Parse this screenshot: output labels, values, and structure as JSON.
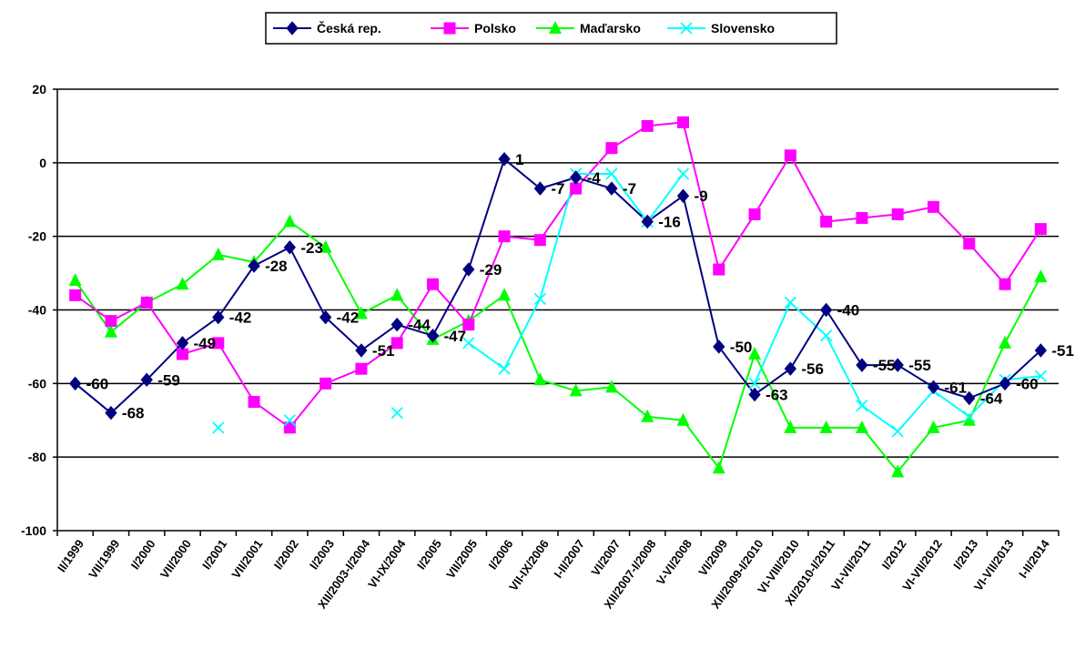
{
  "chart_data": {
    "type": "line",
    "ylim": [
      -100,
      20
    ],
    "yticks": [
      20,
      0,
      -20,
      -40,
      -60,
      -80,
      -100
    ],
    "grid": true,
    "legend_position": "top-center",
    "categories": [
      "II/1999",
      "VII/1999",
      "I/2000",
      "VII/2000",
      "I/2001",
      "VII/2001",
      "I/2002",
      "I/2003",
      "XII/2003-I/2004",
      "VI-IX/2004",
      "I/2005",
      "VII/2005",
      "I/2006",
      "VII-IX/2006",
      "I-II/2007",
      "VI/2007",
      "XII/2007-I/2008",
      "V-VI/2008",
      "VI/2009",
      "XII/2009-I/2010",
      "VI-VIII/2010",
      "XI/2010-I/2011",
      "VI-VII/2011",
      "I/2012",
      "VI-VII/2012",
      "I/2013",
      "VI-VII/2013",
      "I-II/2014"
    ],
    "series": [
      {
        "name": "Česká rep.",
        "color": "#000080",
        "marker": "diamond",
        "values": [
          -60,
          -68,
          -59,
          -49,
          -42,
          -28,
          -23,
          -42,
          -51,
          -44,
          -47,
          -29,
          1,
          -7,
          -4,
          -7,
          -16,
          -9,
          -50,
          -63,
          -56,
          -40,
          -55,
          -55,
          -61,
          -64,
          -60,
          -51
        ],
        "labels": [
          "-60",
          "-68",
          "-59",
          "-49",
          "-42",
          "-28",
          "-23",
          "-42",
          "-51",
          "-44",
          "-47",
          "-29",
          "1",
          "-7",
          "-4",
          "-7",
          "-16",
          "-9",
          "-50",
          "-63",
          "-56",
          "-40",
          "-55",
          "-55",
          "-61",
          "-64",
          "-60",
          "-51"
        ]
      },
      {
        "name": "Polsko",
        "color": "#FF00FF",
        "marker": "square",
        "values": [
          -36,
          -43,
          -38,
          -52,
          -49,
          -65,
          -72,
          -60,
          -56,
          -49,
          -33,
          -44,
          -20,
          -21,
          -7,
          4,
          10,
          11,
          -29,
          -14,
          2,
          -16,
          -15,
          -14,
          -12,
          -22,
          -33,
          -18
        ]
      },
      {
        "name": "Maďarsko",
        "color": "#00FF00",
        "marker": "triangle",
        "values": [
          -32,
          -46,
          -38,
          -33,
          -25,
          -27,
          -16,
          -23,
          -41,
          -36,
          -48,
          -43,
          -36,
          -59,
          -62,
          -61,
          -69,
          -70,
          -83,
          -52,
          -72,
          -72,
          -72,
          -84,
          -72,
          -70,
          -49,
          -31
        ]
      },
      {
        "name": "Slovensko",
        "color": "#00FFFF",
        "marker": "x",
        "values": [
          null,
          null,
          null,
          null,
          -72,
          null,
          -70,
          null,
          null,
          -68,
          null,
          -49,
          -56,
          -37,
          -3,
          -3,
          -16,
          -3,
          null,
          -60,
          -38,
          -47,
          -66,
          -73,
          -62,
          -69,
          -59,
          -58
        ]
      }
    ]
  }
}
